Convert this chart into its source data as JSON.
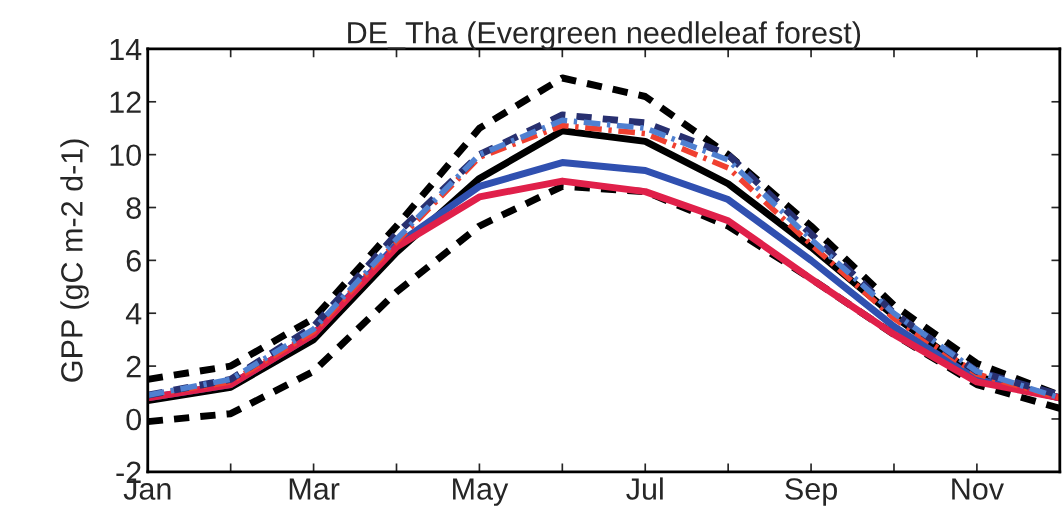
{
  "chart_data": {
    "type": "line",
    "title": "DE_Tha (Evergreen needleleaf forest)",
    "ylabel": "GPP (gC m-2 d-1)",
    "categories": [
      "Jan",
      null,
      "Mar",
      null,
      "May",
      null,
      "Jul",
      null,
      "Sep",
      null,
      "Nov",
      null
    ],
    "ylim": [
      -2,
      14
    ],
    "yticks": [
      -2,
      0,
      2,
      4,
      6,
      8,
      10,
      12,
      14
    ],
    "grid": false,
    "marker": "none",
    "series": [
      {
        "color": "#000000",
        "line_style": "dashed",
        "values": [
          1.5,
          2.0,
          3.8,
          7.3,
          11.0,
          12.9,
          12.2,
          10.0,
          7.3,
          4.3,
          2.1,
          0.9
        ]
      },
      {
        "color": "#000000",
        "line_style": "dashed",
        "values": [
          -0.1,
          0.2,
          1.8,
          4.8,
          7.3,
          8.8,
          8.6,
          7.3,
          5.3,
          3.2,
          1.3,
          0.4
        ]
      },
      {
        "color": "#000000",
        "line_style": "solid",
        "values": [
          0.7,
          1.2,
          3.0,
          6.3,
          9.1,
          10.9,
          10.5,
          8.9,
          6.5,
          3.9,
          1.6,
          0.8
        ]
      },
      {
        "color": "#3050b0",
        "line_style": "solid",
        "values": [
          0.8,
          1.3,
          3.2,
          6.6,
          8.8,
          9.7,
          9.4,
          8.3,
          6.0,
          3.5,
          1.5,
          0.8
        ]
      },
      {
        "color": "#e0204a",
        "line_style": "solid",
        "values": [
          0.8,
          1.3,
          3.2,
          6.5,
          8.4,
          9.0,
          8.6,
          7.5,
          5.3,
          3.2,
          1.4,
          0.8
        ]
      },
      {
        "color": "#f04030",
        "line_style": "dashdot",
        "values": [
          0.9,
          1.4,
          3.3,
          6.7,
          9.9,
          11.1,
          10.8,
          9.5,
          6.6,
          3.8,
          1.7,
          0.8
        ]
      },
      {
        "color": "#283070",
        "line_style": "dashed",
        "values": [
          0.9,
          1.5,
          3.5,
          7.0,
          10.0,
          11.5,
          11.2,
          10.0,
          7.0,
          4.0,
          1.8,
          0.9
        ]
      },
      {
        "color": "#5080d0",
        "line_style": "dashdot",
        "values": [
          0.9,
          1.5,
          3.4,
          6.8,
          10.0,
          11.3,
          11.0,
          9.8,
          6.8,
          4.0,
          1.8,
          0.8
        ]
      }
    ]
  }
}
